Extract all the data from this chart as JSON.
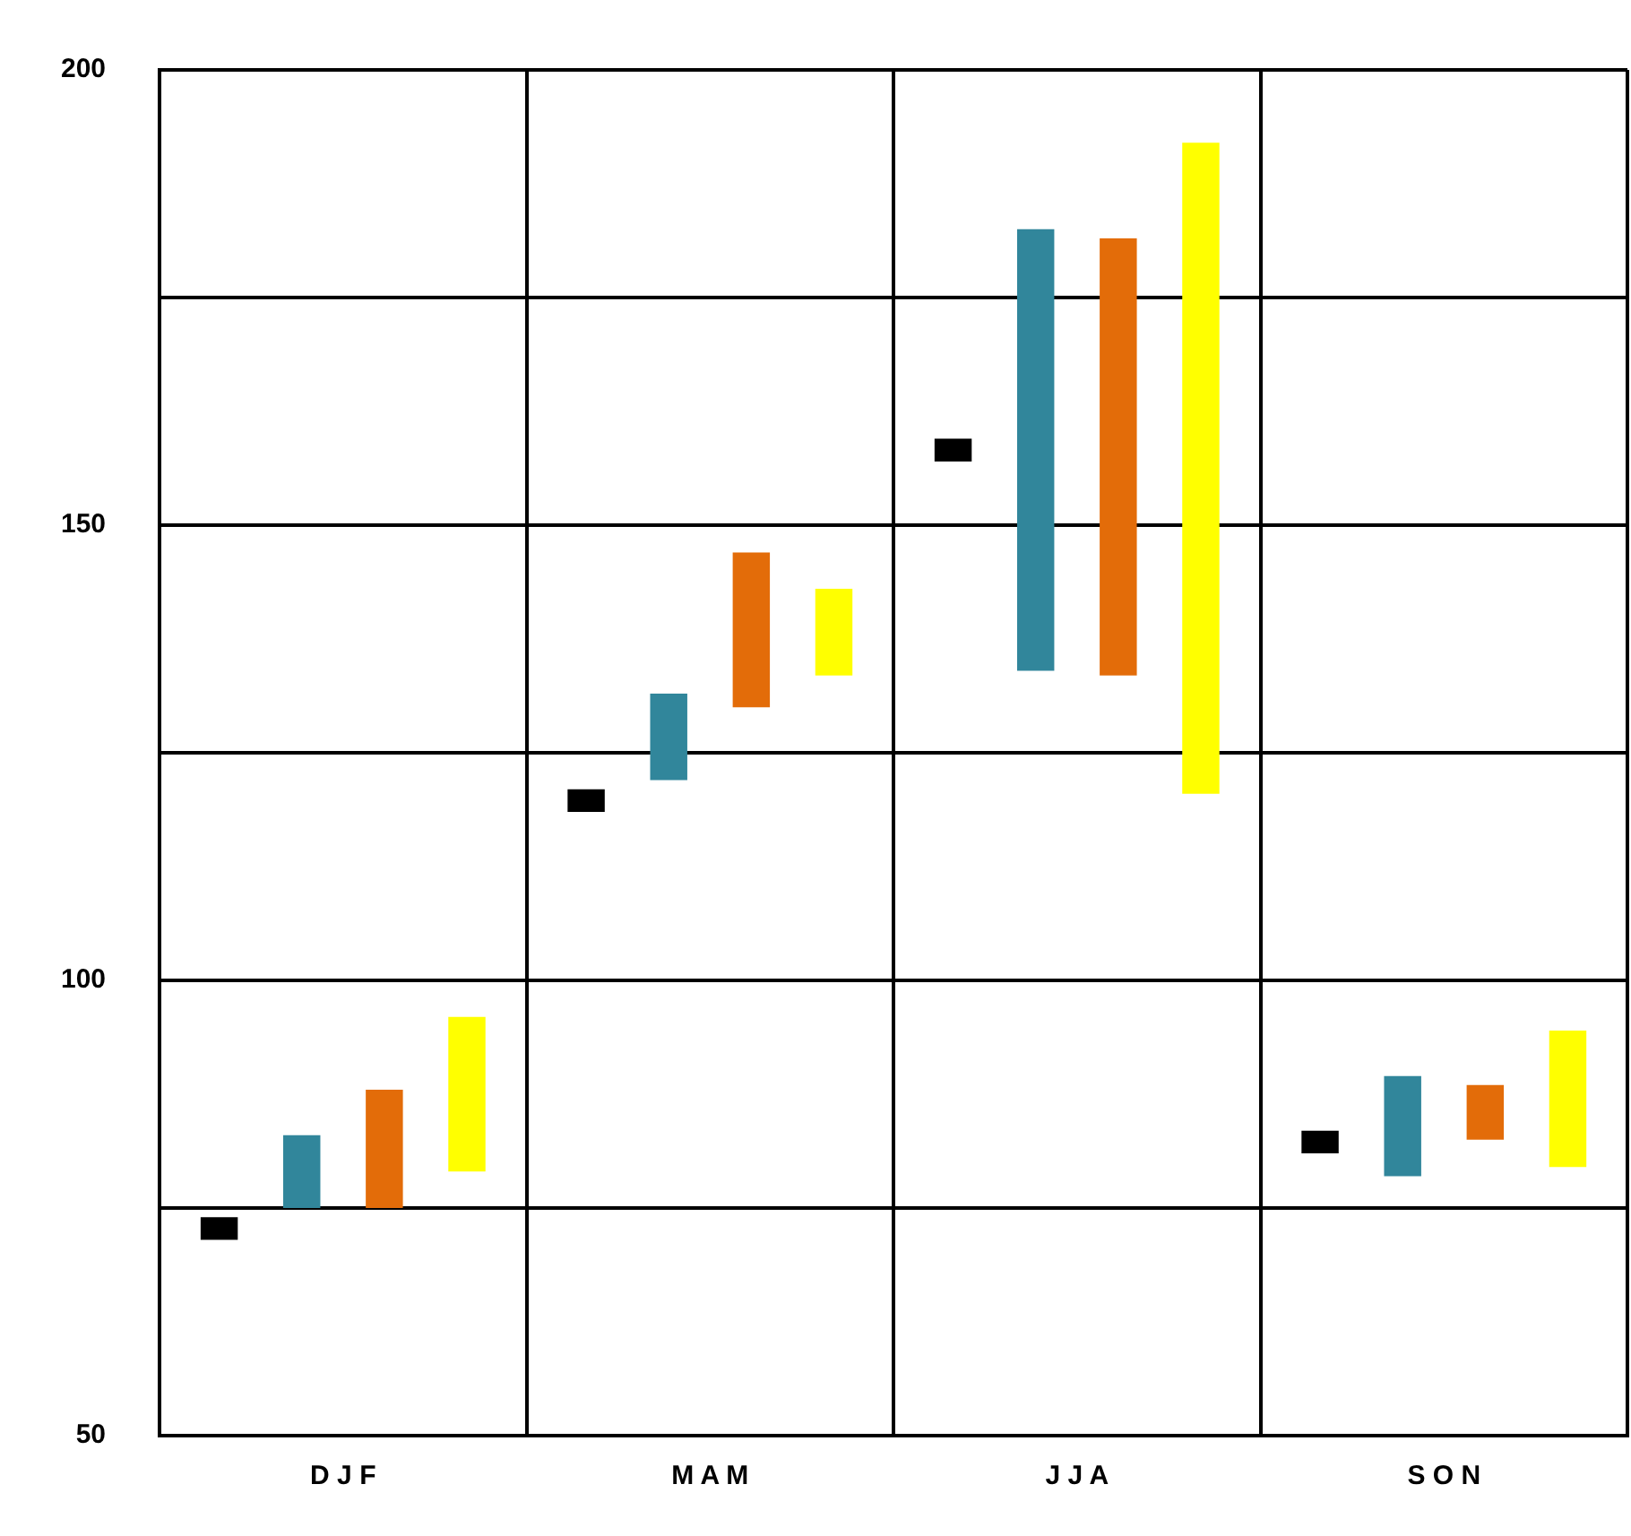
{
  "chart_data": {
    "type": "bar",
    "categories": [
      "D J F",
      "M A M",
      "J J A",
      "S O N"
    ],
    "series": [
      {
        "color": "#000000",
        "base": [
          71.5,
          118.5,
          157,
          81
        ],
        "values": [
          2.5,
          2.5,
          2.5,
          2.5
        ]
      },
      {
        "color": "#31869b",
        "base": [
          75,
          122,
          134,
          78.5
        ],
        "values": [
          8,
          9.5,
          48.5,
          11
        ]
      },
      {
        "color": "#e36c09",
        "base": [
          75,
          130,
          133.5,
          82.5
        ],
        "values": [
          13,
          17,
          48,
          6
        ]
      },
      {
        "color": "#ffff00",
        "base": [
          79,
          133.5,
          120.5,
          79.5
        ],
        "values": [
          17,
          9.5,
          71.5,
          15
        ]
      }
    ],
    "ylim": [
      50,
      200
    ],
    "yticks": [
      50,
      {
        "value": 75,
        "label": null
      },
      100,
      {
        "value": 125,
        "label": null
      },
      150,
      {
        "value": 175,
        "label": null
      },
      200
    ],
    "grid": true,
    "legend": false
  }
}
